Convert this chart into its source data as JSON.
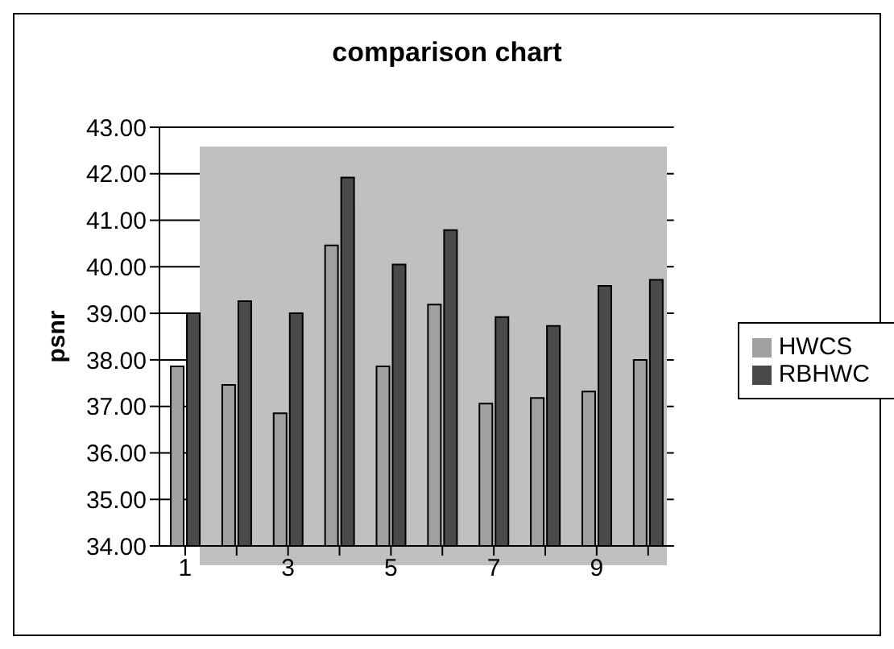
{
  "chart_data": {
    "type": "bar",
    "title": "comparison chart",
    "ylabel": "psnr",
    "categories": [
      "1",
      null,
      "3",
      null,
      "5",
      null,
      "7",
      null,
      "9",
      null
    ],
    "series": [
      {
        "name": "HWCS",
        "color": "#a0a0a0",
        "values": [
          37.86,
          37.46,
          36.85,
          40.46,
          37.86,
          39.19,
          37.06,
          37.18,
          37.32,
          38.0
        ]
      },
      {
        "name": "RBHWC",
        "color": "#4a4a4a",
        "values": [
          39.0,
          39.26,
          39.0,
          41.92,
          40.05,
          40.79,
          38.92,
          38.73,
          39.59,
          39.72
        ]
      }
    ],
    "ylim": [
      34,
      43
    ],
    "yticks": [
      {
        "value": 34,
        "label": "34.00"
      },
      {
        "value": 35,
        "label": "35.00"
      },
      {
        "value": 36,
        "label": "36.00"
      },
      {
        "value": 37,
        "label": "37.00"
      },
      {
        "value": 38,
        "label": "38.00"
      },
      {
        "value": 39,
        "label": "39.00"
      },
      {
        "value": 40,
        "label": "40.00"
      },
      {
        "value": 41,
        "label": "41.00"
      },
      {
        "value": 42,
        "label": "42.00"
      },
      {
        "value": 43,
        "label": "43.00"
      }
    ],
    "grid": "y",
    "legend": "right"
  }
}
